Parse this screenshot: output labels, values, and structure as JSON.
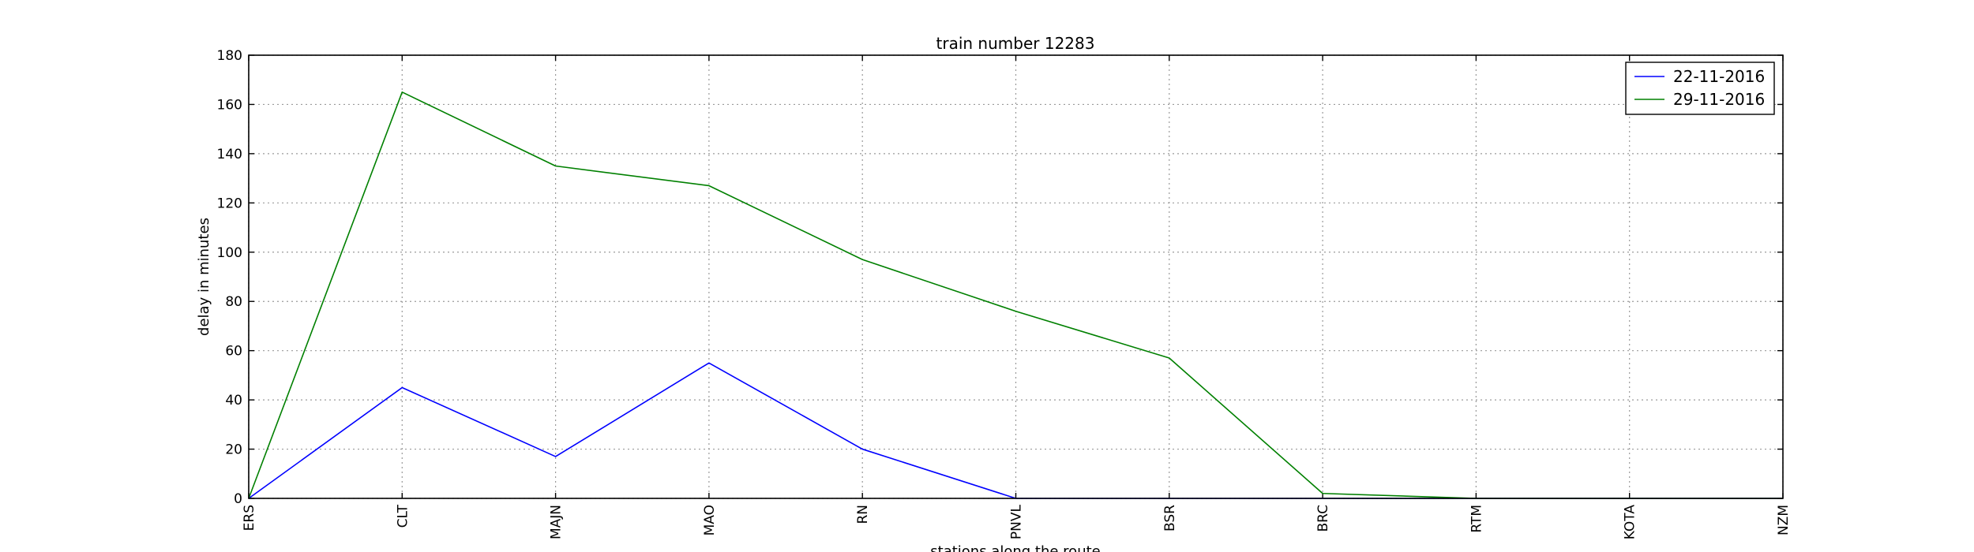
{
  "chart_data": {
    "type": "line",
    "title": "train number 12283",
    "xlabel": "stations along the route",
    "ylabel": "delay in minutes",
    "categories": [
      "ERS",
      "CLT",
      "MAJN",
      "MAO",
      "RN",
      "PNVL",
      "BSR",
      "BRC",
      "RTM",
      "KOTA",
      "NZM"
    ],
    "ylim": [
      0,
      180
    ],
    "yticks": [
      0,
      20,
      40,
      60,
      80,
      100,
      120,
      140,
      160,
      180
    ],
    "grid": true,
    "legend_position": "top-right",
    "series": [
      {
        "name": "22-11-2016",
        "color": "#0000ff",
        "values": [
          0,
          45,
          17,
          55,
          20,
          0,
          0,
          0,
          0,
          0,
          0
        ]
      },
      {
        "name": "29-11-2016",
        "color": "#008000",
        "values": [
          0,
          165,
          135,
          127,
          97,
          76,
          57,
          2,
          0,
          0,
          0
        ]
      }
    ]
  }
}
